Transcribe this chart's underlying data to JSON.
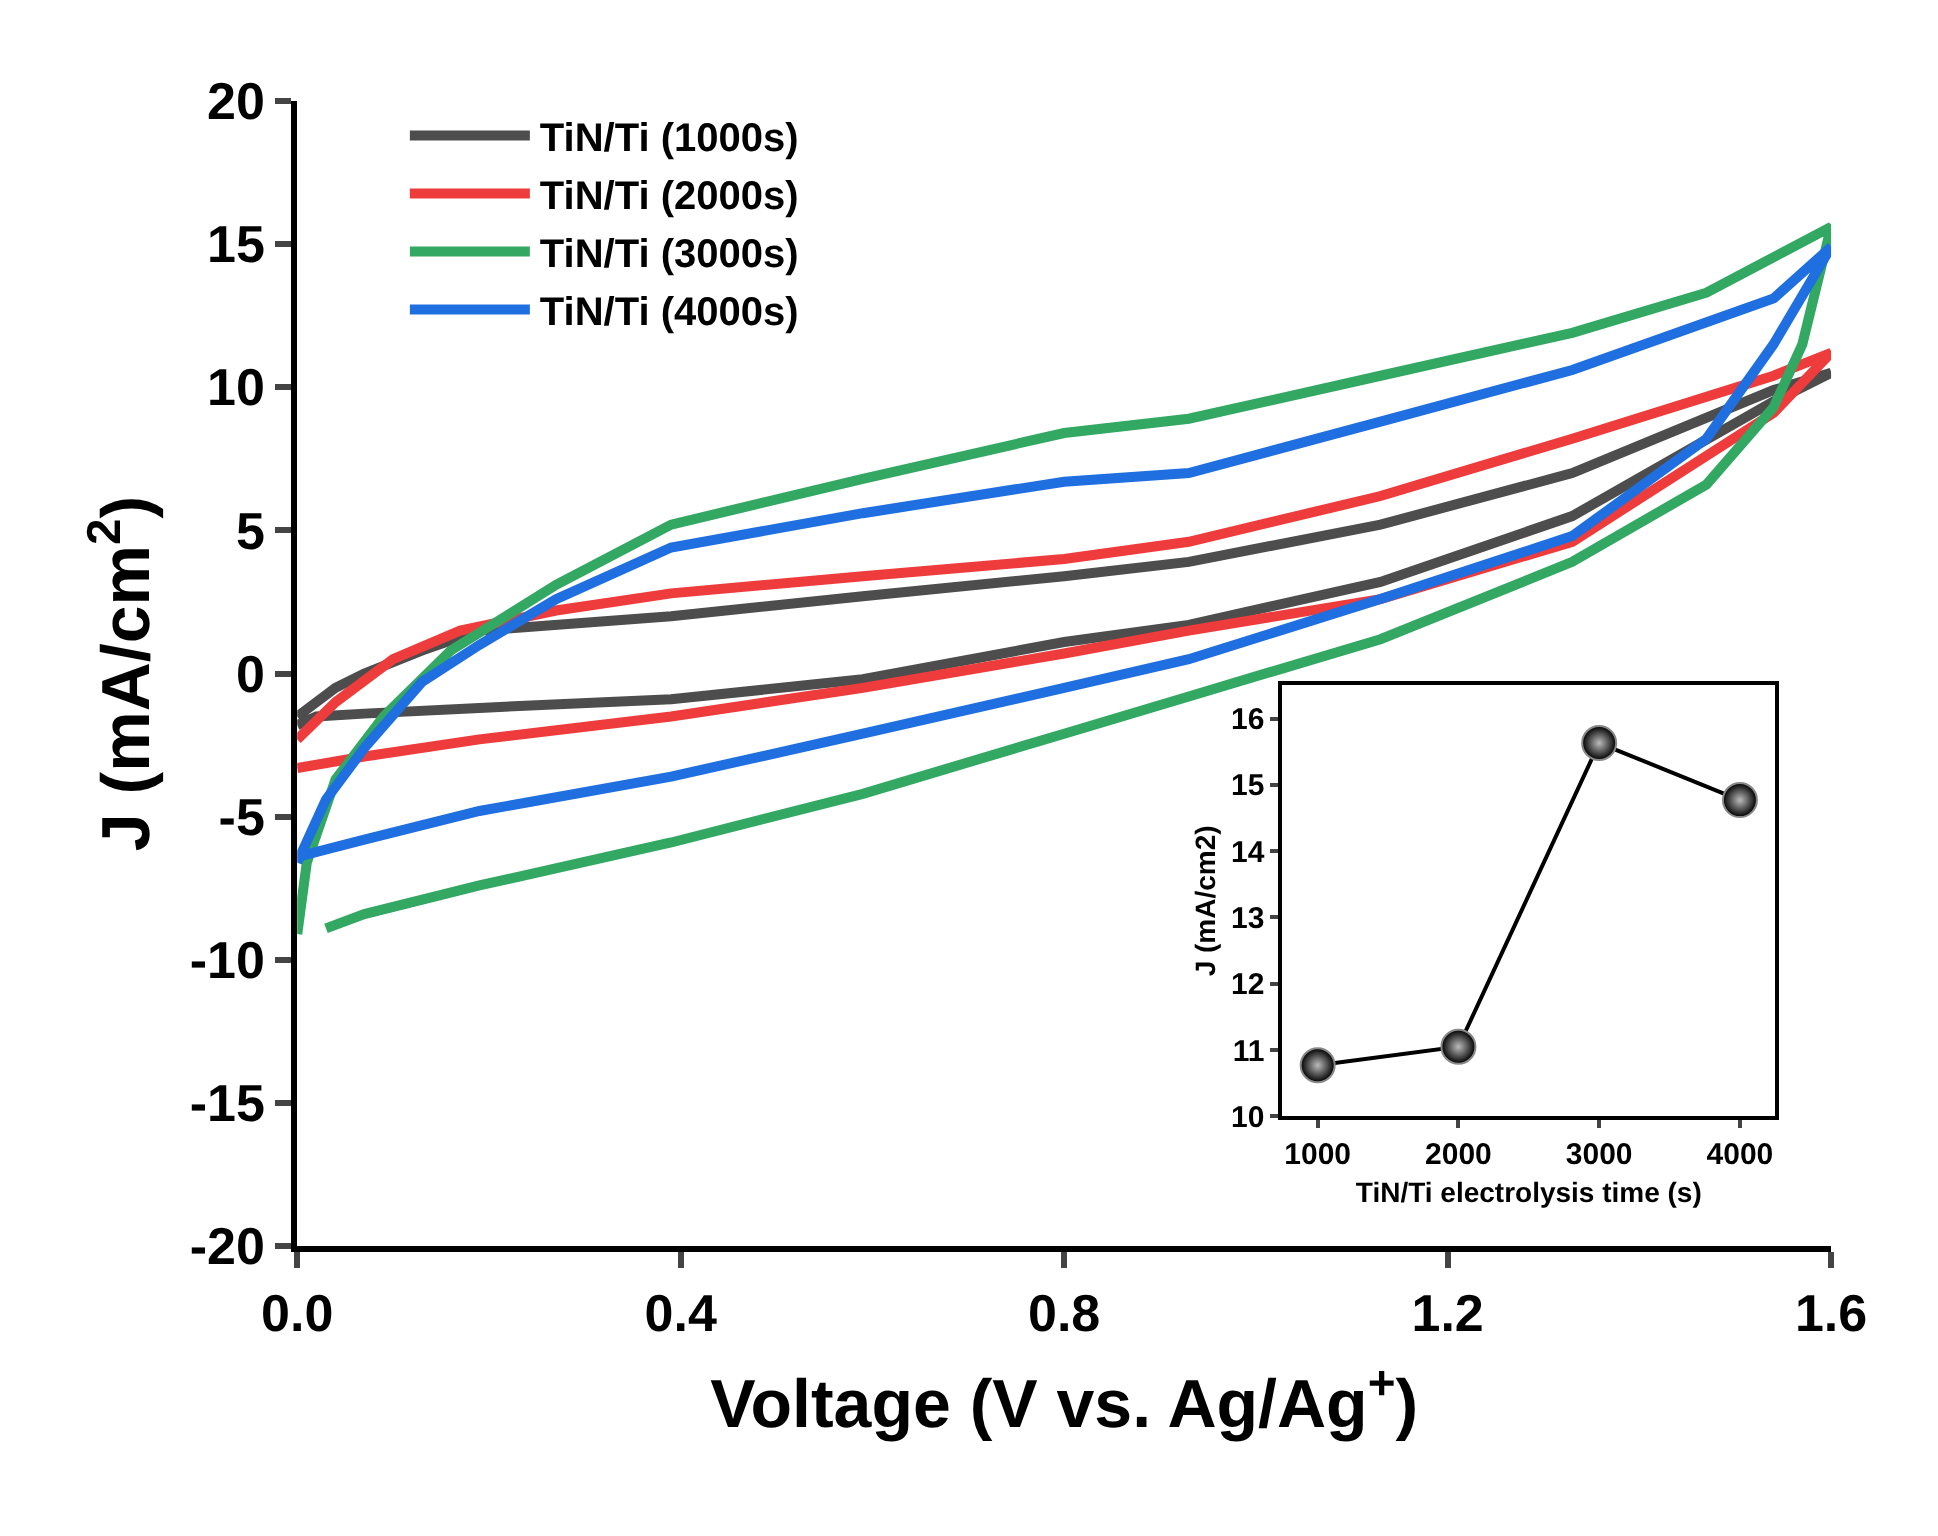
{
  "chart_data": [
    {
      "type": "line",
      "xlabel": "Voltage (V vs. Ag/Ag$^{+}$)",
      "ylabel": "J (mA/cm$^{2}$)",
      "xlim": [
        0,
        1.6
      ],
      "xticks": [
        {
          "value": 0,
          "label": "0.0"
        },
        0.4,
        0.8,
        1.2,
        1.6
      ],
      "ylim": [
        -20,
        20
      ],
      "yticks": [
        -20,
        -15,
        -10,
        -5,
        0,
        5,
        10,
        15,
        20
      ],
      "legend": "top left",
      "line_style": "solid",
      "marker": "none",
      "series": [
        {
          "name": "TiN/Ti (1000s)",
          "color": "#4d4d4d",
          "x": [
            0,
            0.04,
            0.07,
            0.13,
            0.19,
            0.39,
            0.59,
            0.8,
            0.93,
            1.13,
            1.33,
            1.54,
            1.6,
            1.54,
            1.33,
            1.13,
            0.93,
            0.8,
            0.59,
            0.39,
            0.19,
            0.07,
            0.02,
            0
          ],
          "values": [
            -1.5,
            -0.5,
            0,
            0.8,
            1.5,
            2.0,
            2.7,
            3.4,
            3.9,
            5.2,
            7.0,
            9.9,
            10.5,
            9.5,
            5.5,
            3.2,
            1.7,
            1.1,
            -0.2,
            -0.9,
            -1.2,
            -1.4,
            -1.5,
            -1.8
          ]
        },
        {
          "name": "TiN/Ti (2000s)",
          "color": "#ee3b3b",
          "x": [
            0,
            0.04,
            0.1,
            0.17,
            0.27,
            0.39,
            0.59,
            0.8,
            0.93,
            1.13,
            1.33,
            1.54,
            1.6,
            1.54,
            1.33,
            1.13,
            0.93,
            0.8,
            0.59,
            0.39,
            0.19,
            0.07,
            0
          ],
          "values": [
            -2.3,
            -1.0,
            0.5,
            1.5,
            2.2,
            2.8,
            3.4,
            4.0,
            4.6,
            6.2,
            8.2,
            10.4,
            11.2,
            9.1,
            4.6,
            2.6,
            1.5,
            0.7,
            -0.5,
            -1.5,
            -2.3,
            -2.9,
            -3.3
          ]
        },
        {
          "name": "TiN/Ti (3000s)",
          "color": "#32a862",
          "x": [
            0,
            0.01,
            0.04,
            0.09,
            0.16,
            0.27,
            0.39,
            0.59,
            0.8,
            0.93,
            1.13,
            1.33,
            1.47,
            1.6,
            1.57,
            1.54,
            1.47,
            1.33,
            1.13,
            0.93,
            0.8,
            0.59,
            0.39,
            0.19,
            0.07,
            0.03
          ],
          "values": [
            -9.1,
            -6.6,
            -3.7,
            -1.5,
            0.8,
            3.1,
            5.2,
            6.8,
            8.4,
            8.9,
            10.4,
            11.9,
            13.3,
            15.6,
            11.5,
            9.3,
            6.6,
            3.9,
            1.2,
            -0.8,
            -2.1,
            -4.2,
            -5.9,
            -7.4,
            -8.4,
            -8.9
          ]
        },
        {
          "name": "TiN/Ti (4000s)",
          "color": "#1f6fe0",
          "x": [
            0,
            0.03,
            0.07,
            0.13,
            0.19,
            0.27,
            0.39,
            0.59,
            0.8,
            0.93,
            1.13,
            1.33,
            1.54,
            1.6,
            1.54,
            1.47,
            1.33,
            1.13,
            0.93,
            0.8,
            0.59,
            0.39,
            0.19,
            0.07,
            0
          ],
          "values": [
            -6.6,
            -4.4,
            -2.6,
            -0.3,
            1.0,
            2.6,
            4.4,
            5.6,
            6.7,
            7.0,
            8.8,
            10.6,
            13.1,
            14.9,
            11.5,
            8.2,
            4.8,
            2.6,
            0.5,
            -0.5,
            -2.1,
            -3.6,
            -4.8,
            -5.8,
            -6.4
          ]
        }
      ]
    },
    {
      "type": "line",
      "xlabel": "TiN/Ti electrolysis time (s)",
      "ylabel": "J (mA/cm2)",
      "x": [
        1000,
        2000,
        3000,
        4000
      ],
      "xlim": [
        750,
        4250
      ],
      "xticks": [
        1000,
        2000,
        3000,
        4000
      ],
      "ylim": [
        10,
        16.5
      ],
      "yticks": [
        10,
        11,
        12,
        13,
        14,
        15,
        16
      ],
      "legend": false,
      "marker": "circle",
      "line_style": "solid",
      "series": [
        {
          "color": "#000000",
          "values": [
            10.77,
            11.05,
            15.63,
            14.77
          ]
        }
      ]
    }
  ]
}
